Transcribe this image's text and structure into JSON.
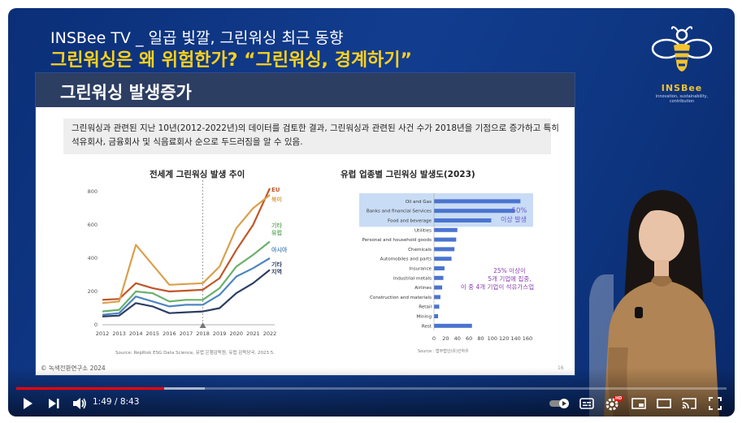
{
  "video": {
    "title_line1": "INSBee TV _ 일곱 빛깔, 그린워싱 최근 동향",
    "title_line2": "그린워싱은 왜 위험한가? “그린워싱, 경계하기”",
    "brand_name": "INSBee",
    "brand_tagline": "innovation, sustainability, contribution"
  },
  "slide": {
    "title": "그린워싱 발생증가",
    "summary_line1": "그린워싱과 관련된 지난 10년(2012-2022년)의 데이터를 검토한 결과, 그린워싱과 관련된 사건 수가 2018년을 기점으로 증가하고 특히",
    "summary_line2": "석유회사, 금융회사 및 식음료회사 순으로 두드러짐을 알 수 있음.",
    "copyright": "© 녹색전환연구소 2024",
    "page_number": "16"
  },
  "chart_data": [
    {
      "type": "line",
      "title": "전세계 그린워싱 발생 추이",
      "x": [
        2012,
        2013,
        2014,
        2015,
        2016,
        2017,
        2018,
        2019,
        2020,
        2021,
        2022
      ],
      "ylim": [
        0,
        800
      ],
      "yticks": [
        0,
        200,
        400,
        600,
        800
      ],
      "marker_year": 2018,
      "source": "Source: RepRisk ESG Data Science, 유럽 은행감독원, 유럽 감독당국, 2023.5.",
      "series": [
        {
          "name": "EU",
          "color": "#c0562a",
          "values": [
            150,
            155,
            250,
            220,
            200,
            205,
            210,
            280,
            450,
            600,
            820
          ]
        },
        {
          "name": "북미",
          "color": "#d9a04b",
          "values": [
            130,
            140,
            480,
            360,
            240,
            245,
            250,
            350,
            580,
            700,
            780
          ]
        },
        {
          "name": "기타 유럽",
          "color": "#6ab16a",
          "values": [
            80,
            90,
            200,
            190,
            140,
            150,
            150,
            220,
            350,
            420,
            500
          ]
        },
        {
          "name": "아시아",
          "color": "#4e86c0",
          "values": [
            60,
            70,
            170,
            140,
            110,
            120,
            120,
            180,
            290,
            340,
            400
          ]
        },
        {
          "name": "기타 지역",
          "color": "#2d3e63",
          "values": [
            50,
            55,
            130,
            110,
            70,
            75,
            80,
            100,
            190,
            250,
            330
          ]
        }
      ]
    },
    {
      "type": "bar",
      "orientation": "horizontal",
      "title": "유럽 업종별 그린워싱 발생도(2023)",
      "categories": [
        "Oil and Gas",
        "Banks and financial Services",
        "Food and beverage",
        "Utilities",
        "Personal and household goods",
        "Chemicals",
        "Automobiles and parts",
        "Insurance",
        "Industrial metals",
        "Airlines",
        "Construction and materials",
        "Retail",
        "Mining",
        "Rest"
      ],
      "values": [
        148,
        138,
        98,
        40,
        38,
        35,
        30,
        18,
        16,
        14,
        11,
        9,
        7,
        65
      ],
      "xlim": [
        0,
        160
      ],
      "xticks": [
        0,
        20,
        40,
        60,
        80,
        100,
        120,
        140,
        160
      ],
      "color": "#4a74d0",
      "highlight_color": "#c9dcf5",
      "annotation_top_1": "50%",
      "annotation_top_2": "이상 발생",
      "annotation_mid_1": "25% 이상이",
      "annotation_mid_2": "5개 기업에 집중,",
      "annotation_mid_3": "이 중 4개 기업이 석유가스업",
      "source": "Source : 법무법인(유)인하우",
      "annotation_color_top": "#6a5acd",
      "annotation_color_mid": "#8a3fb0"
    }
  ],
  "player": {
    "current_time": "1:49",
    "duration": "8:43",
    "time_separator": " / ",
    "progress_played": 0.208,
    "progress_loaded": 0.265,
    "settings_badge": "HD"
  }
}
